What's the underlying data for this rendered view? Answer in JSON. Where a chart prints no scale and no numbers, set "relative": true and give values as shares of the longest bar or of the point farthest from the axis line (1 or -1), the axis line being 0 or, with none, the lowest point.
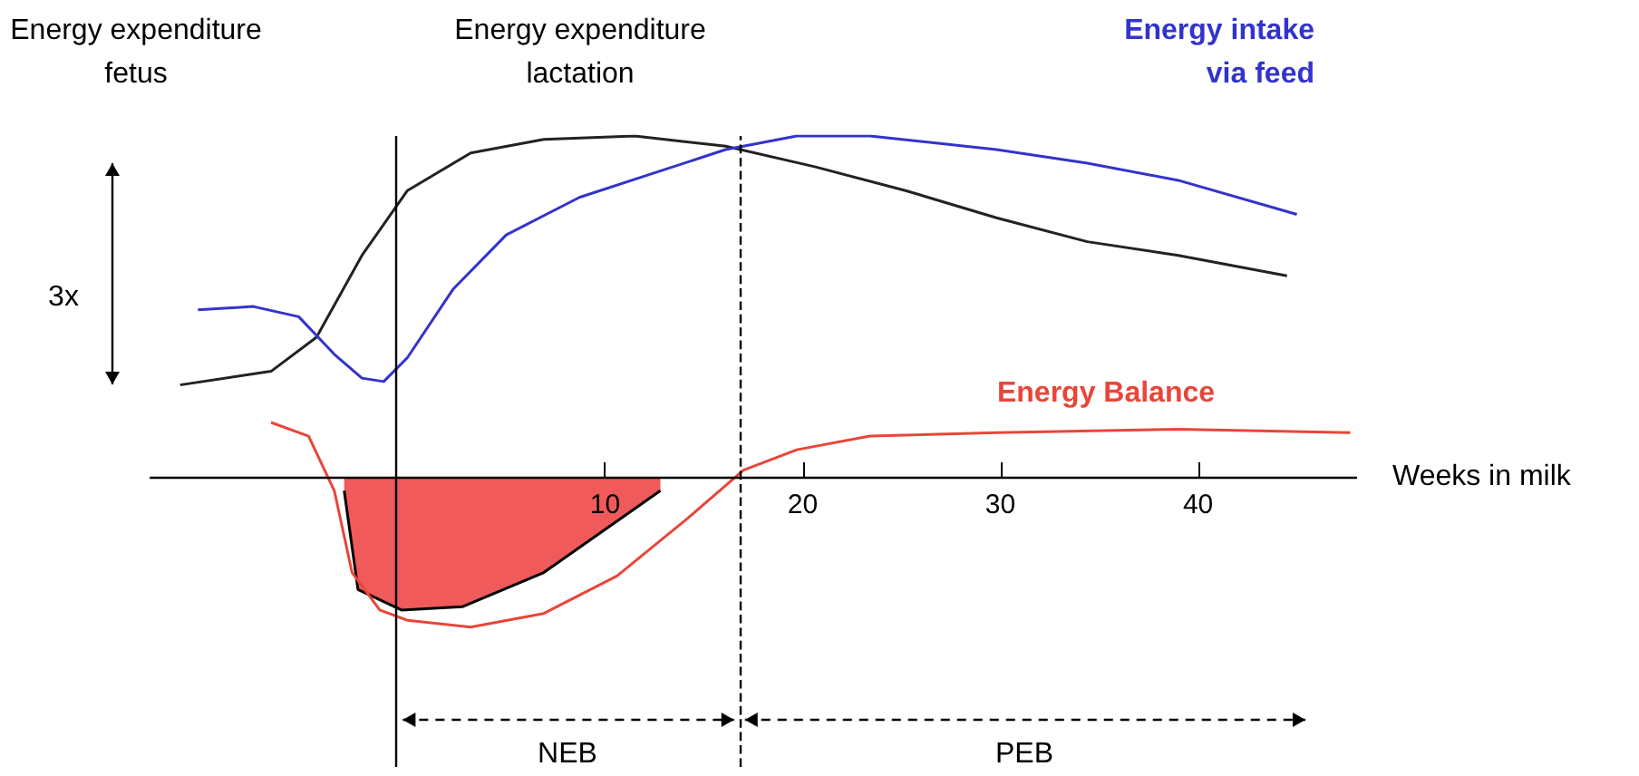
{
  "chart_data": {
    "type": "line",
    "relative": true,
    "xlabel": "Weeks in milk",
    "xlim": [
      -13,
      48
    ],
    "xticks": [
      10,
      20,
      30,
      40
    ],
    "grid": false,
    "marker": "none",
    "line_style": "solid",
    "annotations": [
      "Energy expenditure\nfetus",
      "Energy expenditure\nlactation",
      "3x",
      "NEB",
      "PEB"
    ],
    "ref_lines": [
      {
        "axis": "x",
        "value": -0.6,
        "color": "#000000",
        "line_style": "solid"
      },
      {
        "axis": "x",
        "value": 16.8,
        "color": "#000000",
        "line_style": "dashed"
      }
    ],
    "series": [
      {
        "type": "area",
        "color": "#f05a5a",
        "x": [
          -3.2,
          -2.5,
          -0.3,
          2.8,
          6.9,
          12.8
        ],
        "values": [
          -0.04,
          -0.33,
          -0.39,
          -0.38,
          -0.28,
          -0.04
        ]
      },
      {
        "color": "#222222",
        "x": [
          -11.5,
          -6.9,
          -4.6,
          -2.3,
          0,
          3.2,
          6.9,
          11.5,
          16.1,
          20.6,
          25.2,
          29.8,
          34.4,
          39.0,
          44.5
        ],
        "values": [
          0.27,
          0.31,
          0.41,
          0.65,
          0.84,
          0.95,
          0.99,
          1,
          0.97,
          0.91,
          0.84,
          0.76,
          0.69,
          0.65,
          0.59
        ]
      },
      {
        "name": "Energy intake\nvia feed",
        "color": "#3333cc",
        "x": [
          -10.6,
          -7.8,
          -5.5,
          -3.7,
          -2.3,
          -1.2,
          0,
          2.3,
          5.0,
          8.7,
          12.4,
          16.1,
          19.7,
          23.4,
          29.8,
          34.4,
          39.0,
          45.0
        ],
        "values": [
          0.49,
          0.5,
          0.47,
          0.36,
          0.29,
          0.28,
          0.35,
          0.55,
          0.71,
          0.82,
          0.89,
          0.96,
          1.0,
          1.0,
          0.96,
          0.92,
          0.87,
          0.77
        ]
      },
      {
        "name": "Energy Balance",
        "color": "#e8463a",
        "x": [
          -6.9,
          -5.0,
          -3.7,
          -2.8,
          -1.4,
          0,
          3.2,
          6.9,
          10.6,
          14.2,
          17.0,
          19.7,
          23.4,
          29.8,
          39.0,
          47.7
        ],
        "values": [
          0.16,
          0.12,
          -0.04,
          -0.28,
          -0.39,
          -0.42,
          -0.44,
          -0.4,
          -0.29,
          -0.12,
          0.02,
          0.08,
          0.12,
          0.13,
          0.14,
          0.13
        ]
      }
    ]
  }
}
